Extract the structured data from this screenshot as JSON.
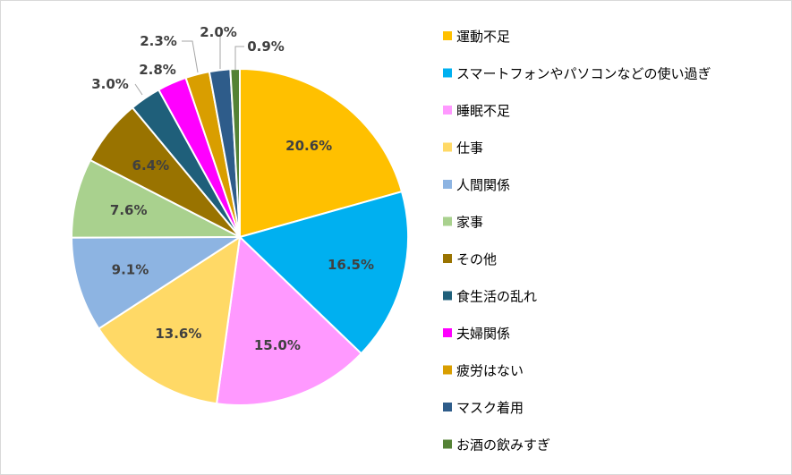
{
  "chart_data": {
    "type": "pie",
    "title": "",
    "start_angle_deg": 0,
    "direction": "clockwise",
    "legend_position": "right",
    "categories": [
      "運動不足",
      "スマートフォンやパソコンなどの使い過ぎ",
      "睡眠不足",
      "仕事",
      "人間関係",
      "家事",
      "その他",
      "食生活の乱れ",
      "夫婦関係",
      "疲労はない",
      "マスク着用",
      "お酒の飲みすぎ"
    ],
    "values": [
      20.6,
      16.5,
      15.0,
      13.6,
      9.1,
      7.6,
      6.4,
      3.0,
      2.8,
      2.3,
      2.0,
      0.9
    ],
    "data_labels": [
      "20.6%",
      "16.5%",
      "15.0%",
      "13.6%",
      "9.1%",
      "7.6%",
      "6.4%",
      "3.0%",
      "2.8%",
      "2.3%",
      "2.0%",
      "0.9%"
    ],
    "colors": [
      "#FFC000",
      "#00B0F0",
      "#FF99FF",
      "#FFD966",
      "#8DB4E2",
      "#A9D18E",
      "#997300",
      "#1F5F7A",
      "#FF00FF",
      "#D99E00",
      "#2E5C8A",
      "#548235"
    ],
    "label_colors": [
      "#404040",
      "#404040",
      "#404040",
      "#404040",
      "#404040",
      "#404040",
      "#404040",
      "#404040",
      "#404040",
      "#404040",
      "#404040",
      "#404040"
    ]
  }
}
